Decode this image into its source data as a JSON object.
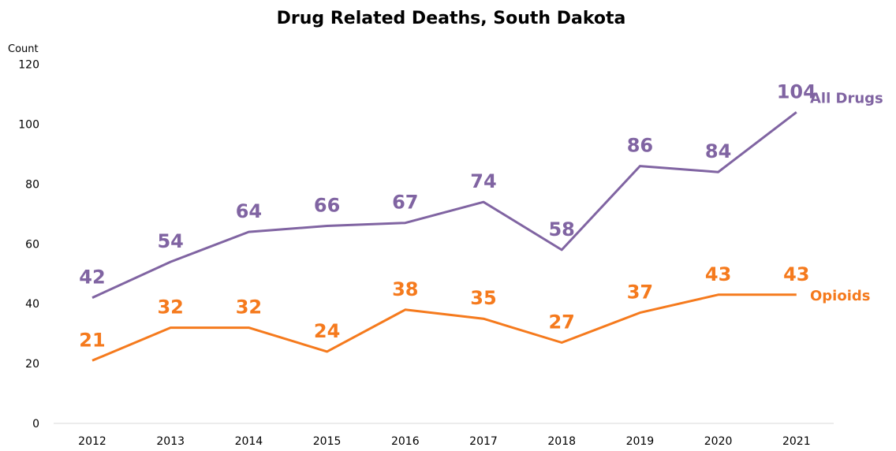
{
  "chart_data": {
    "type": "line",
    "title": "Drug Related Deaths, South Dakota",
    "ylabel": "Count",
    "xlabel": "",
    "categories": [
      "2012",
      "2013",
      "2014",
      "2015",
      "2016",
      "2017",
      "2018",
      "2019",
      "2020",
      "2021"
    ],
    "y_ticks": [
      "0",
      "20",
      "40",
      "60",
      "80",
      "100",
      "120"
    ],
    "ylim": [
      0,
      120
    ],
    "grid": false,
    "legend": "end-of-line labels",
    "series": [
      {
        "name": "All Drugs",
        "color": "#8064a2",
        "values": [
          42,
          54,
          64,
          66,
          67,
          74,
          58,
          86,
          84,
          104
        ],
        "labels": [
          "42",
          "54",
          "64",
          "66",
          "67",
          "74",
          "58",
          "86",
          "84",
          "104"
        ]
      },
      {
        "name": "Opioids",
        "color": "#f57a1d",
        "values": [
          21,
          32,
          32,
          24,
          38,
          35,
          27,
          37,
          43,
          43
        ],
        "labels": [
          "21",
          "32",
          "32",
          "24",
          "38",
          "35",
          "27",
          "37",
          "43",
          "43"
        ]
      }
    ]
  }
}
